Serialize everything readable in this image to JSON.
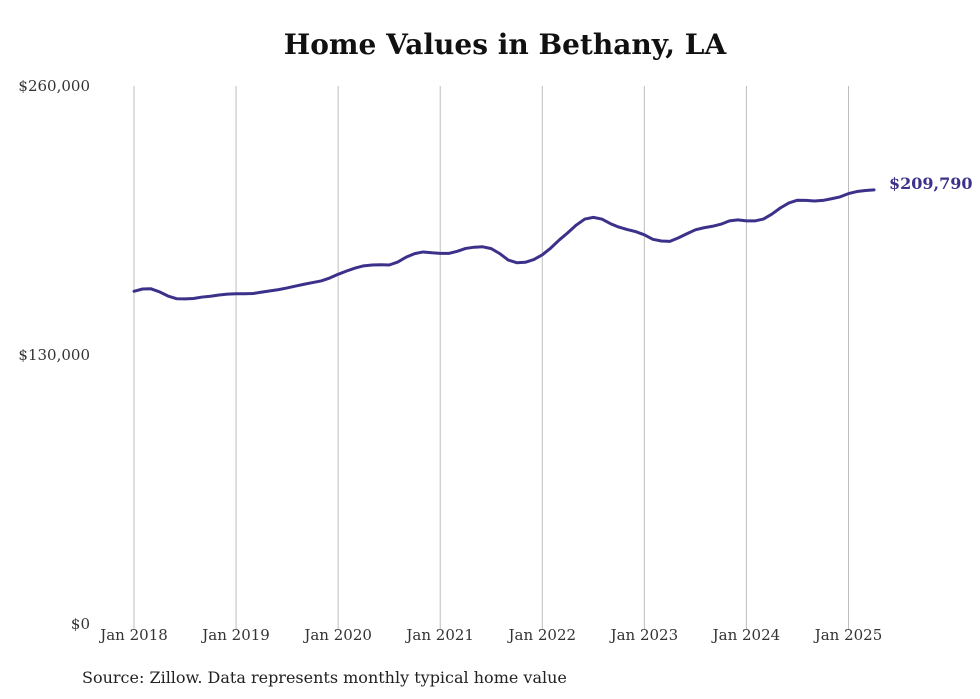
{
  "chart_data": {
    "type": "line",
    "title": "Home Values in Bethany, LA",
    "source": "Source: Zillow. Data represents monthly typical home value",
    "xlabel": "",
    "ylabel": "",
    "ylim": [
      0,
      260000
    ],
    "y_ticks": [
      0,
      130000,
      260000
    ],
    "y_tick_labels": [
      "$0",
      "$130,000",
      "$260,000"
    ],
    "x_ticks": [
      "2018-01",
      "2019-01",
      "2020-01",
      "2021-01",
      "2022-01",
      "2023-01",
      "2024-01",
      "2025-01"
    ],
    "x_tick_labels": [
      "Jan 2018",
      "Jan 2019",
      "Jan 2020",
      "Jan 2021",
      "Jan 2022",
      "Jan 2023",
      "Jan 2024",
      "Jan 2025"
    ],
    "x_range": [
      "2018-01",
      "2025-04"
    ],
    "grid": "vertical",
    "line_color": "#3c318a",
    "end_label": "$209,790",
    "series": [
      {
        "x": [
          "2018-01",
          "2018-02",
          "2018-03",
          "2018-04",
          "2018-05",
          "2018-06",
          "2018-07",
          "2018-08",
          "2018-09",
          "2018-10",
          "2018-11",
          "2018-12",
          "2019-01",
          "2019-02",
          "2019-03",
          "2019-04",
          "2019-05",
          "2019-06",
          "2019-07",
          "2019-08",
          "2019-09",
          "2019-10",
          "2019-11",
          "2019-12",
          "2020-01",
          "2020-02",
          "2020-03",
          "2020-04",
          "2020-05",
          "2020-06",
          "2020-07",
          "2020-08",
          "2020-09",
          "2020-10",
          "2020-11",
          "2020-12",
          "2021-01",
          "2021-02",
          "2021-03",
          "2021-04",
          "2021-05",
          "2021-06",
          "2021-07",
          "2021-08",
          "2021-09",
          "2021-10",
          "2021-11",
          "2021-12",
          "2022-01",
          "2022-02",
          "2022-03",
          "2022-04",
          "2022-05",
          "2022-06",
          "2022-07",
          "2022-08",
          "2022-09",
          "2022-10",
          "2022-11",
          "2022-12",
          "2023-01",
          "2023-02",
          "2023-03",
          "2023-04",
          "2023-05",
          "2023-06",
          "2023-07",
          "2023-08",
          "2023-09",
          "2023-10",
          "2023-11",
          "2023-12",
          "2024-01",
          "2024-02",
          "2024-03",
          "2024-04",
          "2024-05",
          "2024-06",
          "2024-07",
          "2024-08",
          "2024-09",
          "2024-10",
          "2024-11",
          "2024-12",
          "2025-01",
          "2025-02",
          "2025-03",
          "2025-04"
        ],
        "values": [
          160800,
          161900,
          162000,
          160500,
          158500,
          157200,
          157100,
          157300,
          158000,
          158400,
          159000,
          159400,
          159600,
          159600,
          159700,
          160400,
          161000,
          161600,
          162400,
          163300,
          164200,
          165000,
          165800,
          167200,
          169000,
          170600,
          172000,
          173100,
          173500,
          173600,
          173500,
          174900,
          177300,
          179000,
          179800,
          179400,
          179100,
          179100,
          180100,
          181500,
          182100,
          182300,
          181400,
          179000,
          175900,
          174600,
          174800,
          176100,
          178400,
          181700,
          185600,
          189100,
          192800,
          195700,
          196500,
          195700,
          193500,
          191800,
          190600,
          189600,
          188100,
          185900,
          185100,
          184900,
          186600,
          188600,
          190500,
          191500,
          192200,
          193200,
          194800,
          195300,
          194800,
          194800,
          195700,
          198100,
          201100,
          203500,
          204800,
          204700,
          204400,
          204700,
          205500,
          206400,
          208000,
          209000,
          209500,
          209790
        ]
      }
    ]
  }
}
